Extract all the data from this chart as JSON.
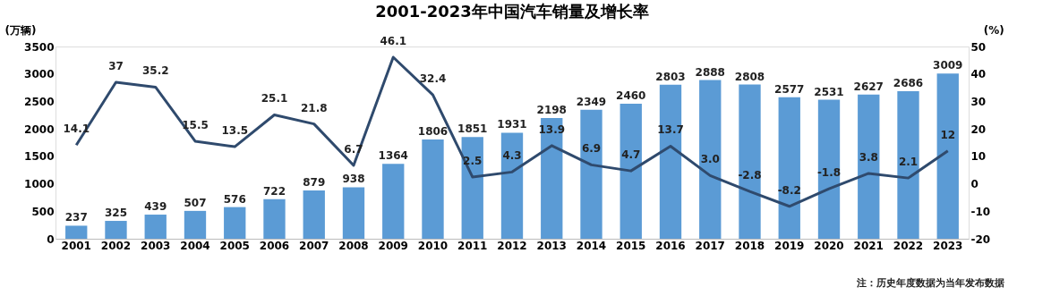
{
  "chart_data": {
    "type": "bar",
    "title": "2001-2023年中国汽车销量及增长率",
    "ylabel": "(万辆)",
    "y2label": "(%)",
    "categories": [
      "2001",
      "2002",
      "2003",
      "2004",
      "2005",
      "2006",
      "2007",
      "2008",
      "2009",
      "2010",
      "2011",
      "2012",
      "2013",
      "2014",
      "2015",
      "2016",
      "2017",
      "2018",
      "2019",
      "2020",
      "2021",
      "2022",
      "2023"
    ],
    "series": [
      {
        "color": "#5b9bd5",
        "values": [
          237,
          325,
          439,
          507,
          576,
          722,
          879,
          938,
          1364,
          1806,
          1851,
          1931,
          2198,
          2349,
          2460,
          2803,
          2888,
          2808,
          2577,
          2531,
          2627,
          2686,
          3009
        ]
      },
      {
        "type": "line",
        "axis": "y2",
        "color": "#2f4a6d",
        "values": [
          14.1,
          37,
          35.2,
          15.5,
          13.5,
          25.1,
          21.8,
          6.7,
          46.1,
          32.4,
          2.5,
          4.3,
          13.9,
          6.9,
          4.7,
          13.7,
          3.0,
          -2.8,
          -8.2,
          -1.8,
          3.8,
          2.1,
          12
        ],
        "value_labels": [
          "14.1",
          "37",
          "35.2",
          "15.5",
          "13.5",
          "25.1",
          "21.8",
          "6.7",
          "46.1",
          "32.4",
          "2.5",
          "4.3",
          "13.9",
          "6.9",
          "4.7",
          "13.7",
          "3.0",
          "-2.8",
          "-8.2",
          "-1.8",
          "3.8",
          "2.1",
          "12"
        ]
      }
    ],
    "data_labels": true,
    "ylim": [
      0,
      3500
    ],
    "yticks": [
      0,
      500,
      1000,
      1500,
      2000,
      2500,
      3000,
      3500
    ],
    "y2lim": [
      -20,
      50
    ],
    "y2ticks": [
      -20,
      -10,
      0,
      10,
      20,
      30,
      40,
      50
    ],
    "grid": false,
    "marker": "none",
    "line_style": "solid",
    "annotations": [
      "注：历史年度数据为当年发布数据"
    ]
  }
}
